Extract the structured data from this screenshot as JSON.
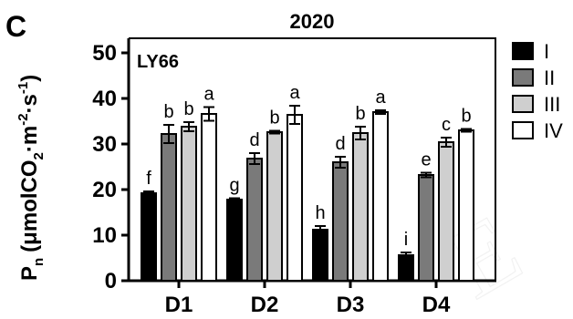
{
  "panel_label": "C",
  "chart_data": {
    "type": "bar",
    "title": "2020",
    "inset_label": "LY66",
    "ylabel": "P_n (μmolCO₂·m⁻²·s⁻¹)",
    "ylabel_parts": {
      "symbol": "P",
      "symbol_sub": "n",
      "unit_prefix": "(μmolCO",
      "unit_sub": "2",
      "unit_mid1": "·m",
      "unit_sup1": "-2",
      "unit_mid2": "·s",
      "unit_sup2": "-1",
      "unit_close": ")"
    },
    "ylim": [
      0,
      50
    ],
    "yticks": [
      0,
      10,
      20,
      30,
      40,
      50
    ],
    "categories": [
      "D1",
      "D2",
      "D3",
      "D4"
    ],
    "legend_position": "right",
    "series": [
      {
        "name": "I",
        "color": "#000000",
        "values": [
          19.2,
          17.8,
          11.2,
          5.6
        ],
        "errors": [
          0.4,
          0.3,
          0.8,
          0.6
        ],
        "letters": [
          "f",
          "g",
          "h",
          "i"
        ]
      },
      {
        "name": "II",
        "color": "#7a7a7a",
        "values": [
          32.2,
          26.8,
          26.0,
          23.2
        ],
        "errors": [
          2.0,
          1.2,
          1.2,
          0.5
        ],
        "letters": [
          "b",
          "d",
          "d",
          "e"
        ]
      },
      {
        "name": "III",
        "color": "#cfcfcf",
        "values": [
          33.8,
          32.6,
          32.4,
          30.4
        ],
        "errors": [
          1.0,
          0.3,
          1.4,
          1.0
        ],
        "letters": [
          "b",
          "b",
          "b",
          "c"
        ]
      },
      {
        "name": "IV",
        "color": "#ffffff",
        "values": [
          36.6,
          36.4,
          37.0,
          33.0
        ],
        "errors": [
          1.5,
          2.0,
          0.4,
          0.3
        ],
        "letters": [
          "a",
          "a",
          "a",
          "b"
        ]
      }
    ]
  }
}
